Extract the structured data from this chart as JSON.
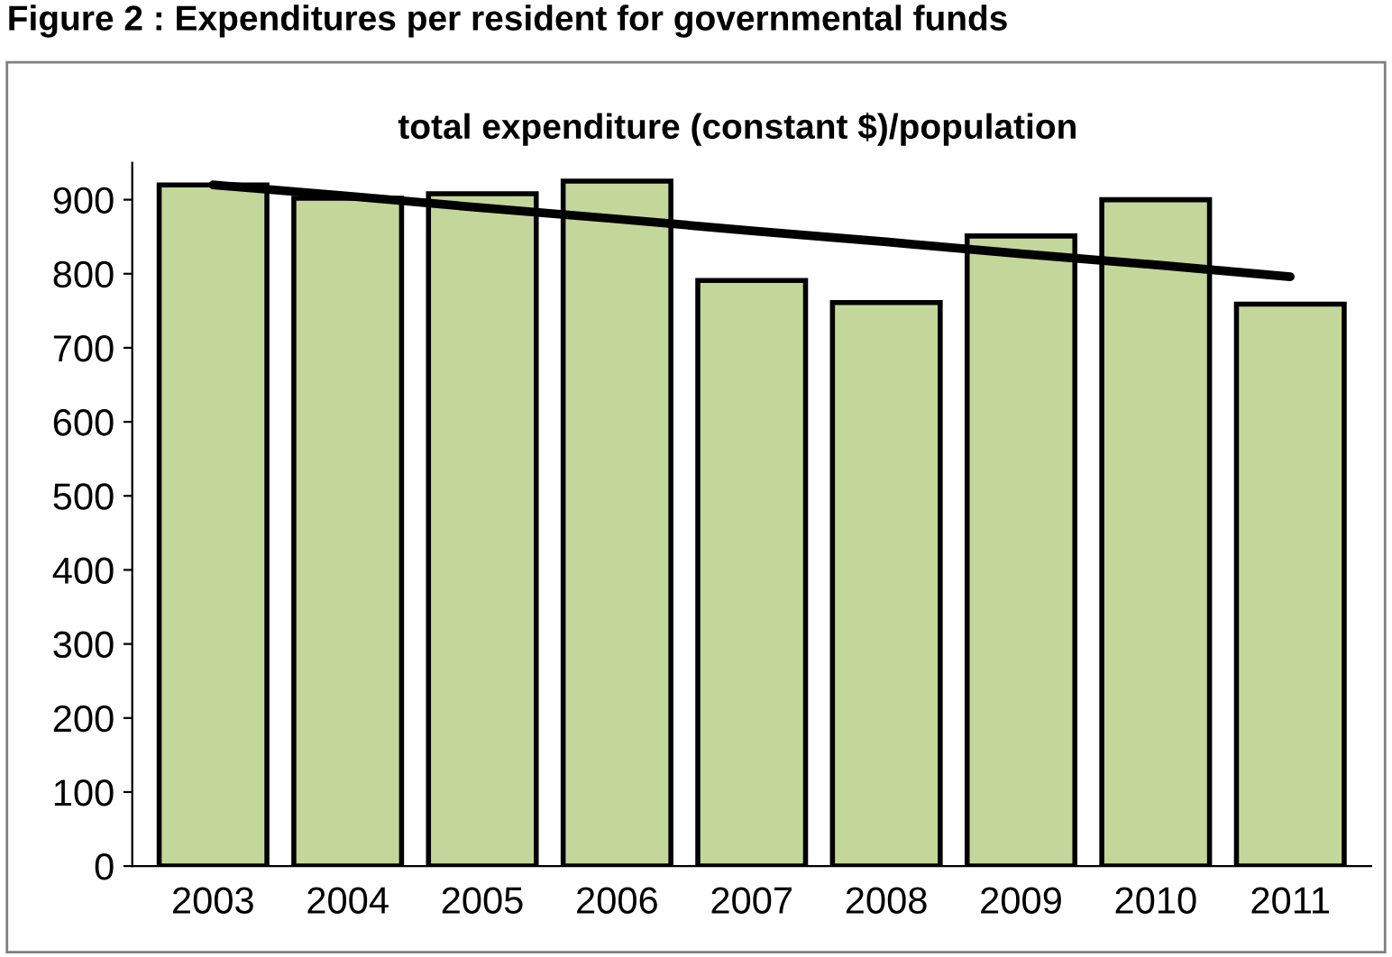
{
  "chart_data": {
    "type": "bar",
    "title": "Figure 2 : Expenditures per resident for governmental funds",
    "subtitle": "total expenditure (constant $)/population",
    "categories": [
      "2003",
      "2004",
      "2005",
      "2006",
      "2007",
      "2008",
      "2009",
      "2010",
      "2011"
    ],
    "series": [
      {
        "color": "#c4d79b",
        "values": [
          920,
          902,
          908,
          925,
          791,
          761,
          851,
          900,
          759
        ]
      },
      {
        "type": "line",
        "color": "#000000",
        "values": [
          920,
          905,
          889,
          874,
          858,
          843,
          827,
          812,
          796
        ]
      }
    ],
    "ylim": [
      0,
      950
    ],
    "yticks": [
      0,
      100,
      200,
      300,
      400,
      500,
      600,
      700,
      800,
      900
    ],
    "grid": false,
    "legend": false
  }
}
